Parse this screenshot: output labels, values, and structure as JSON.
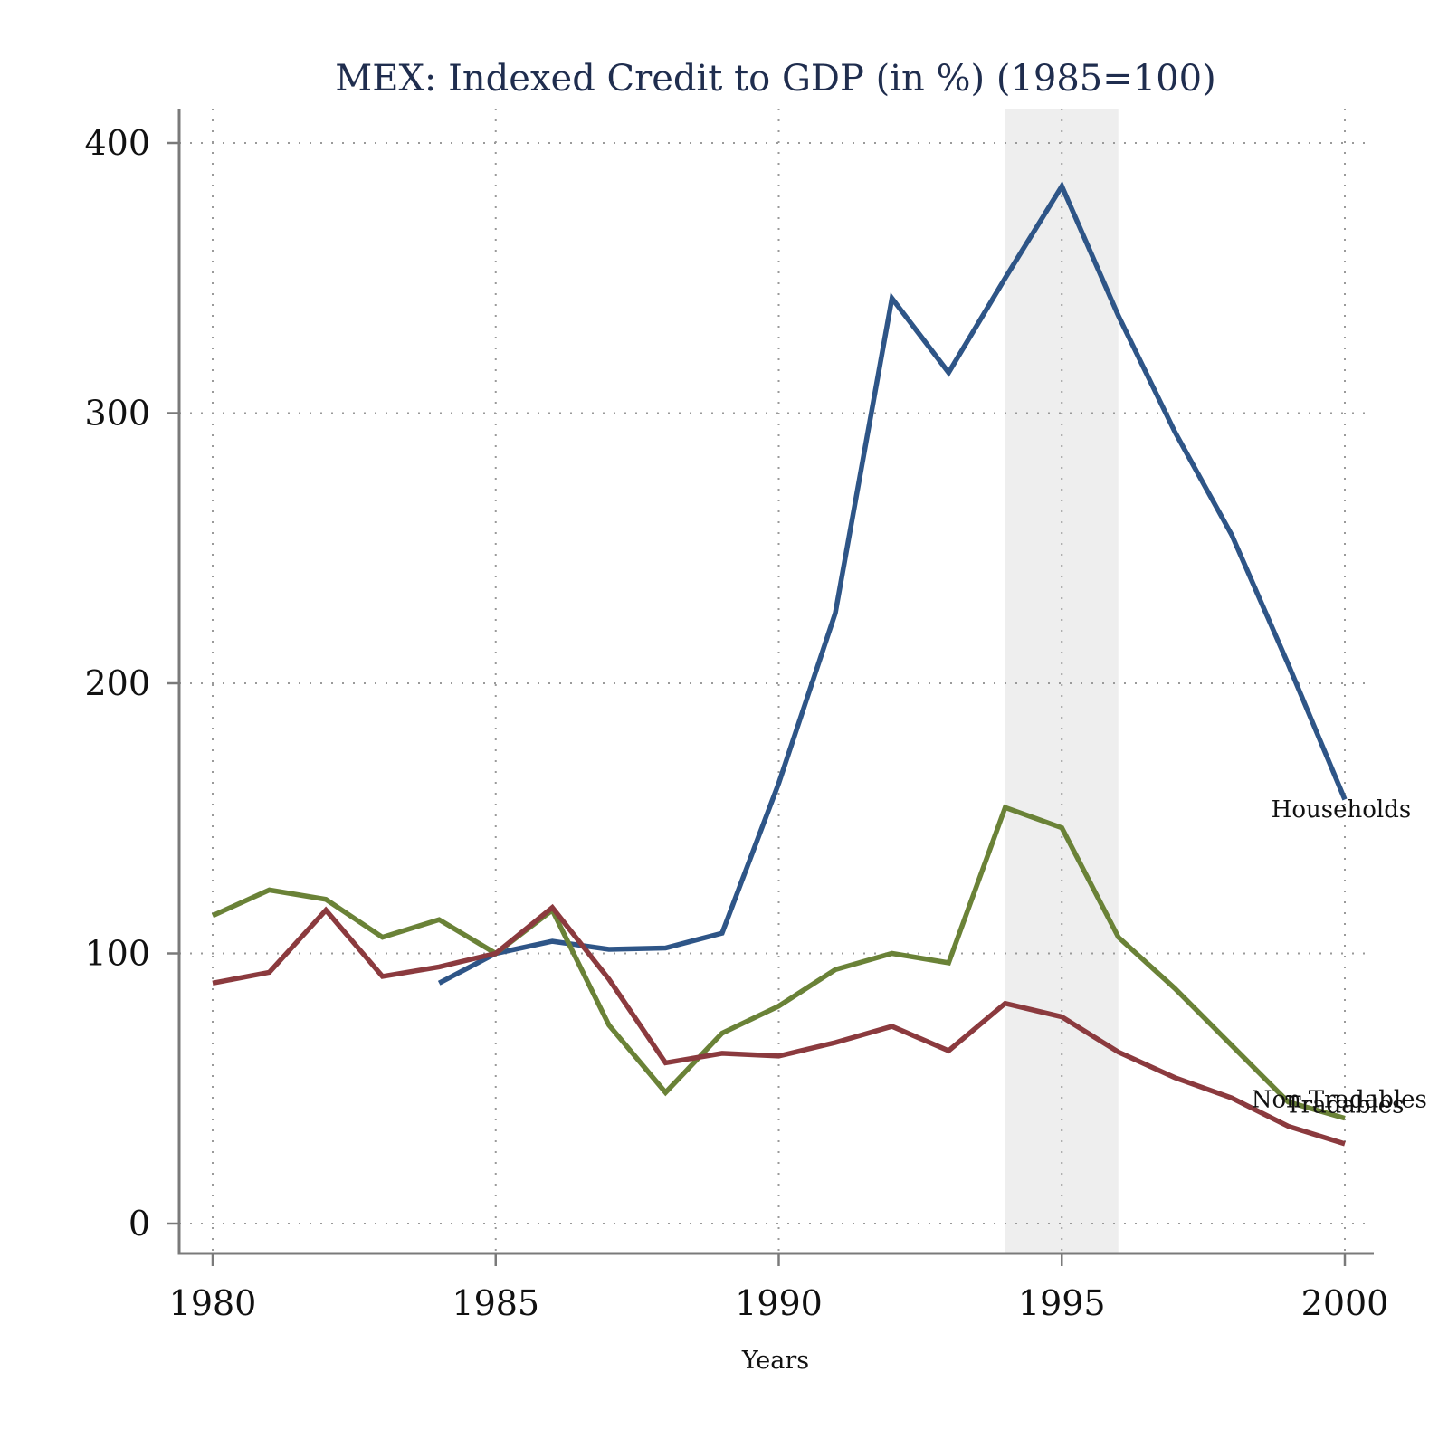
{
  "chart_data": {
    "type": "line",
    "title": "MEX: Indexed Credit to GDP (in %) (1985=100)",
    "xlabel": "Years",
    "ylabel": "",
    "xlim": [
      1979.4,
      2000.55
    ],
    "ylim": [
      -12,
      412
    ],
    "xticks": [
      1980,
      1985,
      1990,
      1995,
      2000
    ],
    "yticks": [
      0,
      100,
      200,
      300,
      400
    ],
    "grid": true,
    "shaded_region": {
      "from": 1994,
      "to": 1996,
      "color": "#eeeeee"
    },
    "series": [
      {
        "name": "Households",
        "color": "#2e5587",
        "x": [
          1984,
          1985,
          1986,
          1987,
          1988,
          1989,
          1990,
          1991,
          1992,
          1993,
          1994,
          1995,
          1996,
          1997,
          1998,
          1999,
          2000
        ],
        "y": [
          89,
          100,
          104.5,
          101.5,
          102,
          107.5,
          163,
          226,
          342.5,
          315,
          350,
          384,
          336,
          293,
          255,
          207,
          157
        ]
      },
      {
        "name": "Non-Tradables",
        "color": "#6a8237",
        "x": [
          1980,
          1981,
          1982,
          1983,
          1984,
          1985,
          1986,
          1987,
          1988,
          1989,
          1990,
          1991,
          1992,
          1993,
          1994,
          1995,
          1996,
          1997,
          1998,
          1999,
          2000
        ],
        "y": [
          114,
          123.5,
          120,
          106,
          112.5,
          100,
          116,
          73.5,
          48.5,
          70.5,
          80.5,
          94,
          100,
          96.5,
          154,
          146.5,
          106,
          87,
          66,
          45,
          39
        ]
      },
      {
        "name": "Tradables",
        "color": "#8b3a3e",
        "x": [
          1980,
          1981,
          1982,
          1983,
          1984,
          1985,
          1986,
          1987,
          1988,
          1989,
          1990,
          1991,
          1992,
          1993,
          1994,
          1995,
          1996,
          1997,
          1998,
          1999,
          2000
        ],
        "y": [
          89,
          93,
          116,
          91.5,
          95,
          100,
          117,
          90.5,
          59.5,
          63,
          62,
          67,
          73,
          64,
          81.5,
          76.5,
          63.5,
          54,
          46.5,
          36,
          29.5
        ]
      }
    ],
    "annotations": [
      {
        "text": "Households",
        "x": 1998.7,
        "y": 153.5
      },
      {
        "text": "Non-Tradables",
        "x": 1998.35,
        "y": 46
      },
      {
        "text": "Tradables",
        "x": 1998.95,
        "y": 44
      }
    ]
  }
}
